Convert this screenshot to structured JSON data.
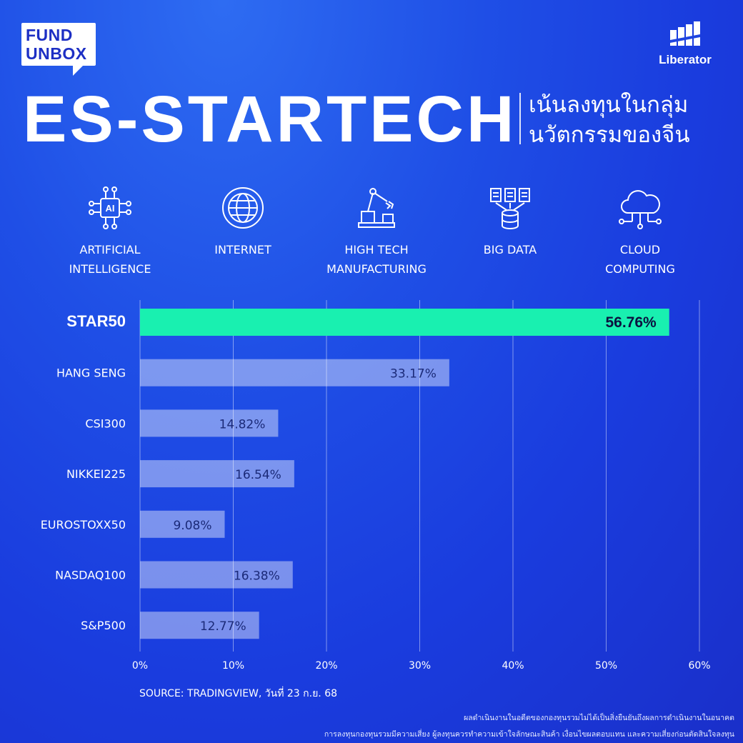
{
  "brand": {
    "fund_line1": "FUND",
    "fund_line2": "UNBOX",
    "liberator": "Liberator"
  },
  "header": {
    "title": "ES-STARTECH",
    "subtitle_line1": "เน้นลงทุนในกลุ่ม",
    "subtitle_line2": "นวัตกรรมของจีน"
  },
  "categories": [
    {
      "label": "ARTIFICIAL\nINTELLIGENCE",
      "icon": "ai-chip-icon"
    },
    {
      "label": "INTERNET",
      "icon": "globe-icon"
    },
    {
      "label": "HIGH TECH\nMANUFACTURING",
      "icon": "robot-arm-icon"
    },
    {
      "label": "BIG DATA",
      "icon": "database-icon"
    },
    {
      "label": "CLOUD\nCOMPUTING",
      "icon": "cloud-icon"
    }
  ],
  "chart_data": {
    "type": "bar",
    "orientation": "horizontal",
    "categories": [
      "STAR50",
      "HANG SENG",
      "CSI300",
      "NIKKEI225",
      "EUROSTOXX50",
      "NASDAQ100",
      "S&P500"
    ],
    "values": [
      56.76,
      33.17,
      14.82,
      16.54,
      9.08,
      16.38,
      12.77
    ],
    "value_labels": [
      "56.76%",
      "33.17%",
      "14.82%",
      "16.54%",
      "9.08%",
      "16.38%",
      "12.77%"
    ],
    "x_ticks": [
      "0%",
      "10%",
      "20%",
      "30%",
      "40%",
      "50%",
      "60%"
    ],
    "xlim": [
      0,
      60
    ],
    "highlight": "STAR50",
    "grid": true,
    "colors": {
      "highlight": "#19f0b0",
      "bar": "#ffffff"
    }
  },
  "footer": {
    "source": "SOURCE: TRADINGVIEW, วันที่ 23 ก.ย. 68",
    "disclaimer_line1": "ผลดำเนินงานในอดีตของกองทุนรวมไม่ได้เป็นสิ่งยืนยันถึงผลการดำเนินงานในอนาคต",
    "disclaimer_line2": "การลงทุนกองทุนรวมมีความเสี่ยง ผู้ลงทุนควรทำความเข้าใจลักษณะสินค้า เงื่อนไขผลตอบแทน และความเสี่ยงก่อนตัดสินใจลงทุน"
  }
}
